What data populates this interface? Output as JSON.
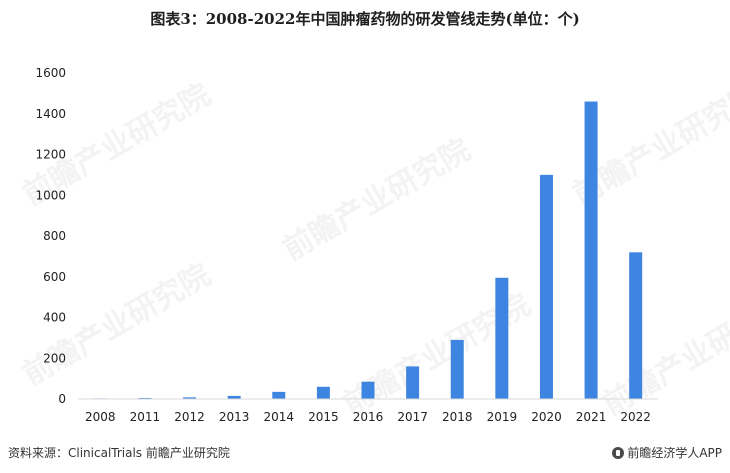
{
  "title": "图表3：2008-2022年中国肿瘤药物的研发管线走势(单位：个)",
  "footer": {
    "source": "资料来源：ClinicalTrials 前瞻产业研究院",
    "brand": "前瞻经济学人APP",
    "brand_icon": "qianzhan-logo-icon"
  },
  "watermark": "前瞻产业研究院",
  "colors": {
    "bar": "#3d85e0",
    "axis": "#d9d9d9",
    "text": "#222222"
  },
  "chart_data": {
    "type": "bar",
    "categories": [
      "2008",
      "2011",
      "2012",
      "2013",
      "2014",
      "2015",
      "2016",
      "2017",
      "2018",
      "2019",
      "2020",
      "2021",
      "2022"
    ],
    "values": [
      3,
      5,
      8,
      15,
      35,
      60,
      85,
      160,
      290,
      595,
      1100,
      1460,
      720
    ],
    "ylim": [
      0,
      1600
    ],
    "yticks": [
      0,
      200,
      400,
      600,
      800,
      1000,
      1200,
      1400,
      1600
    ],
    "xlabel": "",
    "ylabel": "",
    "grid": false,
    "legend": "none"
  }
}
